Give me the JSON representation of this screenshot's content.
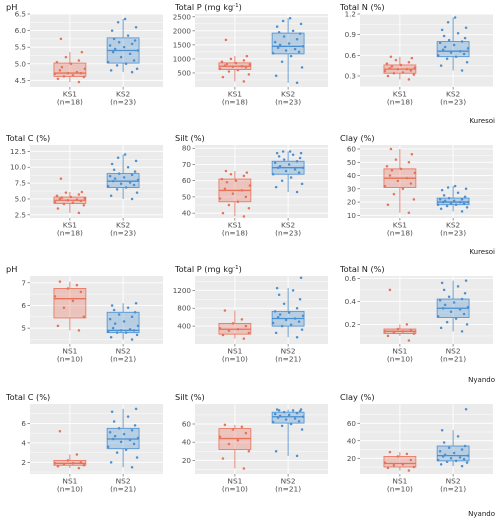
{
  "colors": {
    "ks1": "#e8715a",
    "ks2": "#4a90d0",
    "panel_bg": "#ebebeb",
    "grid": "#ffffff",
    "text": "#4d4d4d"
  },
  "site_labels": [
    "Kuresoi",
    "Kuresoi",
    "Nyando",
    "Nyando"
  ],
  "chart_data": [
    {
      "type": "box",
      "title": "pH",
      "ylim": [
        4.3,
        6.5
      ],
      "yticks": [
        4.5,
        5.0,
        5.5,
        6.0,
        6.5
      ],
      "ytick_labels": [
        "4.5",
        "5.0",
        "5.5",
        "6.0",
        "6.5"
      ],
      "categories": [
        "KS1",
        "KS2"
      ],
      "counts": [
        "(n=18)",
        "(n=23)"
      ],
      "series": [
        {
          "q1": 4.62,
          "median": 4.72,
          "q3": 5.02,
          "wlo": 4.45,
          "whi": 5.35,
          "points": [
            4.45,
            4.55,
            4.6,
            4.62,
            4.65,
            4.7,
            4.72,
            4.72,
            4.75,
            4.8,
            4.85,
            4.9,
            5.0,
            5.05,
            5.1,
            5.2,
            5.35,
            5.75
          ]
        },
        {
          "q1": 5.02,
          "median": 5.4,
          "q3": 5.78,
          "wlo": 4.75,
          "whi": 6.35,
          "points": [
            4.75,
            4.8,
            4.85,
            4.95,
            5.0,
            5.05,
            5.1,
            5.2,
            5.3,
            5.35,
            5.4,
            5.45,
            5.5,
            5.55,
            5.6,
            5.65,
            5.7,
            5.75,
            5.85,
            6.0,
            6.1,
            6.25,
            6.35
          ]
        }
      ]
    },
    {
      "type": "box",
      "title": "Total P (mg kg",
      "title_sup": "-1",
      "title_end": ")",
      "ylim": [
        0,
        2600
      ],
      "yticks": [
        500,
        1000,
        1500,
        2000,
        2500
      ],
      "ytick_labels": [
        "500",
        "1000",
        "1500",
        "2000",
        "2500"
      ],
      "categories": [
        "KS1",
        "KS2"
      ],
      "counts": [
        "(n=18)",
        "(n=23)"
      ],
      "series": [
        {
          "q1": 620,
          "median": 740,
          "q3": 860,
          "wlo": 200,
          "whi": 1100,
          "points": [
            200,
            350,
            450,
            550,
            600,
            650,
            700,
            720,
            740,
            760,
            800,
            820,
            850,
            900,
            950,
            1000,
            1100,
            1680
          ]
        },
        {
          "q1": 1180,
          "median": 1450,
          "q3": 1920,
          "wlo": 150,
          "whi": 2450,
          "points": [
            150,
            400,
            700,
            900,
            1100,
            1200,
            1250,
            1300,
            1350,
            1400,
            1450,
            1500,
            1550,
            1600,
            1700,
            1800,
            1900,
            1950,
            2000,
            2150,
            2250,
            2350,
            2450
          ]
        }
      ]
    },
    {
      "type": "box",
      "title": "Total N (%)",
      "ylim": [
        0.14,
        1.2
      ],
      "yticks": [
        0.3,
        0.6,
        0.9,
        1.2
      ],
      "ytick_labels": [
        "0.3",
        "0.6",
        "0.9",
        "1.2"
      ],
      "categories": [
        "KS1",
        "KS2"
      ],
      "counts": [
        "(n=18)",
        "(n=23)"
      ],
      "series": [
        {
          "q1": 0.34,
          "median": 0.4,
          "q3": 0.46,
          "wlo": 0.25,
          "whi": 0.58,
          "points": [
            0.25,
            0.3,
            0.32,
            0.34,
            0.35,
            0.37,
            0.38,
            0.4,
            0.4,
            0.41,
            0.42,
            0.44,
            0.46,
            0.48,
            0.5,
            0.53,
            0.56,
            0.58
          ]
        },
        {
          "q1": 0.58,
          "median": 0.66,
          "q3": 0.8,
          "wlo": 0.38,
          "whi": 1.15,
          "points": [
            0.38,
            0.45,
            0.5,
            0.55,
            0.58,
            0.6,
            0.62,
            0.64,
            0.66,
            0.68,
            0.7,
            0.72,
            0.75,
            0.78,
            0.8,
            0.82,
            0.85,
            0.88,
            0.92,
            0.97,
            1.0,
            1.08,
            1.15
          ]
        }
      ]
    },
    {
      "type": "box",
      "title": "Total C (%)",
      "ylim": [
        2.0,
        13.5
      ],
      "yticks": [
        2.5,
        5.0,
        7.5,
        10.0,
        12.5
      ],
      "ytick_labels": [
        "2.5",
        "5.0",
        "7.5",
        "10.0",
        "12.5"
      ],
      "categories": [
        "KS1",
        "KS2"
      ],
      "counts": [
        "(n=18)",
        "(n=23)"
      ],
      "series": [
        {
          "q1": 4.3,
          "median": 4.8,
          "q3": 5.3,
          "wlo": 2.8,
          "whi": 6.1,
          "points": [
            2.8,
            3.5,
            4.0,
            4.2,
            4.4,
            4.5,
            4.7,
            4.8,
            4.9,
            5.0,
            5.1,
            5.2,
            5.3,
            5.5,
            5.7,
            6.0,
            6.1,
            8.2
          ]
        },
        {
          "q1": 6.8,
          "median": 7.8,
          "q3": 9.0,
          "wlo": 5.0,
          "whi": 12.0,
          "points": [
            5.0,
            5.5,
            6.0,
            6.5,
            6.8,
            7.0,
            7.2,
            7.4,
            7.6,
            7.8,
            8.0,
            8.2,
            8.4,
            8.6,
            8.8,
            9.0,
            9.3,
            9.6,
            10.0,
            10.5,
            11.0,
            11.5,
            12.0
          ]
        }
      ]
    },
    {
      "type": "box",
      "title": "Silt (%)",
      "ylim": [
        37,
        82
      ],
      "yticks": [
        40,
        50,
        60,
        70,
        80
      ],
      "ytick_labels": [
        "40",
        "50",
        "60",
        "70",
        "80"
      ],
      "categories": [
        "KS1",
        "KS2"
      ],
      "counts": [
        "(n=18)",
        "(n=23)"
      ],
      "series": [
        {
          "q1": 47,
          "median": 54,
          "q3": 61,
          "wlo": 38,
          "whi": 66,
          "points": [
            38,
            40,
            43,
            45,
            47,
            49,
            50,
            52,
            54,
            55,
            57,
            59,
            60,
            61,
            63,
            64,
            65,
            66
          ]
        },
        {
          "q1": 64,
          "median": 68,
          "q3": 72,
          "wlo": 53,
          "whi": 78,
          "points": [
            53,
            56,
            58,
            60,
            62,
            64,
            65,
            66,
            67,
            68,
            68,
            69,
            70,
            71,
            72,
            73,
            74,
            75,
            76,
            77,
            77,
            78,
            78
          ]
        }
      ]
    },
    {
      "type": "box",
      "title": "Clay (%)",
      "ylim": [
        8,
        63
      ],
      "yticks": [
        10,
        20,
        30,
        40,
        50,
        60
      ],
      "ytick_labels": [
        "10",
        "20",
        "30",
        "40",
        "50",
        "60"
      ],
      "categories": [
        "KS1",
        "KS2"
      ],
      "counts": [
        "(n=18)",
        "(n=23)"
      ],
      "series": [
        {
          "q1": 31,
          "median": 38,
          "q3": 45,
          "wlo": 12,
          "whi": 60,
          "points": [
            12,
            18,
            22,
            26,
            30,
            32,
            34,
            36,
            38,
            40,
            42,
            44,
            45,
            47,
            50,
            52,
            56,
            60
          ]
        },
        {
          "q1": 18,
          "median": 20,
          "q3": 23,
          "wlo": 13,
          "whi": 32,
          "points": [
            13,
            15,
            16,
            17,
            18,
            18,
            19,
            19,
            20,
            20,
            20,
            21,
            21,
            22,
            22,
            23,
            24,
            25,
            27,
            29,
            30,
            31,
            32
          ]
        }
      ]
    },
    {
      "type": "box",
      "title": "pH",
      "ylim": [
        4.3,
        7.3
      ],
      "yticks": [
        5,
        6,
        7
      ],
      "ytick_labels": [
        "5",
        "6",
        "7"
      ],
      "categories": [
        "NS1",
        "NS2"
      ],
      "counts": [
        "(n=10)",
        "(n=21)"
      ],
      "series": [
        {
          "q1": 5.45,
          "median": 6.3,
          "q3": 6.75,
          "wlo": 4.9,
          "whi": 7.05,
          "points": [
            4.9,
            5.1,
            5.5,
            5.9,
            6.2,
            6.4,
            6.6,
            6.75,
            6.9,
            7.05
          ]
        },
        {
          "q1": 4.8,
          "median": 4.9,
          "q3": 5.7,
          "wlo": 4.5,
          "whi": 6.1,
          "points": [
            4.5,
            4.6,
            4.7,
            4.8,
            4.8,
            4.85,
            4.9,
            4.9,
            4.95,
            5.0,
            5.1,
            5.2,
            5.3,
            5.4,
            5.5,
            5.6,
            5.7,
            5.8,
            5.9,
            6.0,
            6.1
          ]
        }
      ]
    },
    {
      "type": "box",
      "title": "Total P (mg kg",
      "title_sup": "-1",
      "title_end": ")",
      "ylim": [
        0,
        1520
      ],
      "yticks": [
        400,
        800,
        1200
      ],
      "ytick_labels": [
        "400",
        "800",
        "1200"
      ],
      "categories": [
        "NS1",
        "NS2"
      ],
      "counts": [
        "(n=10)",
        "(n=21)"
      ],
      "series": [
        {
          "q1": 220,
          "median": 330,
          "q3": 460,
          "wlo": 120,
          "whi": 750,
          "points": [
            120,
            200,
            250,
            300,
            330,
            350,
            400,
            460,
            550,
            750
          ]
        },
        {
          "q1": 400,
          "median": 570,
          "q3": 730,
          "wlo": 150,
          "whi": 1250,
          "points": [
            150,
            250,
            320,
            400,
            430,
            470,
            500,
            540,
            570,
            600,
            630,
            660,
            700,
            730,
            800,
            900,
            1000,
            1100,
            1200,
            1250,
            1480
          ]
        }
      ]
    },
    {
      "type": "box",
      "title": "Total N (%)",
      "ylim": [
        0.03,
        0.62
      ],
      "yticks": [
        0.2,
        0.4,
        0.6
      ],
      "ytick_labels": [
        "0.2",
        "0.4",
        "0.6"
      ],
      "categories": [
        "NS1",
        "NS2"
      ],
      "counts": [
        "(n=10)",
        "(n=21)"
      ],
      "series": [
        {
          "q1": 0.12,
          "median": 0.14,
          "q3": 0.16,
          "wlo": 0.1,
          "whi": 0.2,
          "points": [
            0.06,
            0.1,
            0.12,
            0.13,
            0.14,
            0.14,
            0.15,
            0.16,
            0.2,
            0.5
          ]
        },
        {
          "q1": 0.26,
          "median": 0.34,
          "q3": 0.42,
          "wlo": 0.14,
          "whi": 0.58,
          "points": [
            0.14,
            0.17,
            0.2,
            0.22,
            0.25,
            0.27,
            0.29,
            0.31,
            0.33,
            0.34,
            0.35,
            0.37,
            0.39,
            0.41,
            0.42,
            0.44,
            0.47,
            0.5,
            0.53,
            0.56,
            0.58
          ]
        }
      ]
    },
    {
      "type": "box",
      "title": "Total C (%)",
      "ylim": [
        0.8,
        8.0
      ],
      "yticks": [
        2,
        4,
        6
      ],
      "ytick_labels": [
        "2",
        "4",
        "6"
      ],
      "categories": [
        "NS1",
        "NS2"
      ],
      "counts": [
        "(n=10)",
        "(n=21)"
      ],
      "series": [
        {
          "q1": 1.7,
          "median": 1.9,
          "q3": 2.2,
          "wlo": 1.4,
          "whi": 2.8,
          "points": [
            1.4,
            1.6,
            1.7,
            1.8,
            1.9,
            1.9,
            2.0,
            2.2,
            2.8,
            5.2
          ]
        },
        {
          "q1": 3.4,
          "median": 4.4,
          "q3": 5.5,
          "wlo": 1.5,
          "whi": 7.5,
          "points": [
            1.5,
            2.0,
            2.5,
            3.0,
            3.3,
            3.6,
            3.9,
            4.1,
            4.3,
            4.4,
            4.5,
            4.7,
            4.9,
            5.1,
            5.3,
            5.5,
            5.8,
            6.2,
            6.7,
            7.2,
            7.5
          ]
        }
      ]
    },
    {
      "type": "box",
      "title": "Silt (%)",
      "ylim": [
        5,
        82
      ],
      "yticks": [
        20,
        40,
        60
      ],
      "ytick_labels": [
        "20",
        "40",
        "60"
      ],
      "categories": [
        "NS1",
        "NS2"
      ],
      "counts": [
        "(n=10)",
        "(n=21)"
      ],
      "series": [
        {
          "q1": 32,
          "median": 44,
          "q3": 55,
          "wlo": 11,
          "whi": 59,
          "points": [
            11,
            22,
            30,
            38,
            42,
            46,
            50,
            54,
            57,
            59
          ]
        },
        {
          "q1": 61,
          "median": 68,
          "q3": 73,
          "wlo": 25,
          "whi": 76,
          "points": [
            25,
            30,
            54,
            58,
            60,
            62,
            63,
            65,
            66,
            67,
            68,
            69,
            70,
            71,
            72,
            73,
            74,
            75,
            75,
            76,
            76
          ]
        }
      ]
    },
    {
      "type": "box",
      "title": "Clay (%)",
      "ylim": [
        2,
        82
      ],
      "yticks": [
        20,
        40,
        60
      ],
      "ytick_labels": [
        "20",
        "40",
        "60"
      ],
      "categories": [
        "NS1",
        "NS2"
      ],
      "counts": [
        "(n=10)",
        "(n=21)"
      ],
      "series": [
        {
          "q1": 10,
          "median": 14,
          "q3": 22,
          "wlo": 6,
          "whi": 27,
          "points": [
            6,
            9,
            10,
            12,
            13,
            15,
            18,
            22,
            25,
            27
          ]
        },
        {
          "q1": 17,
          "median": 23,
          "q3": 34,
          "wlo": 11,
          "whi": 52,
          "points": [
            11,
            13,
            15,
            16,
            17,
            18,
            19,
            20,
            21,
            22,
            23,
            24,
            26,
            28,
            30,
            32,
            34,
            38,
            45,
            52,
            76
          ]
        }
      ]
    }
  ]
}
